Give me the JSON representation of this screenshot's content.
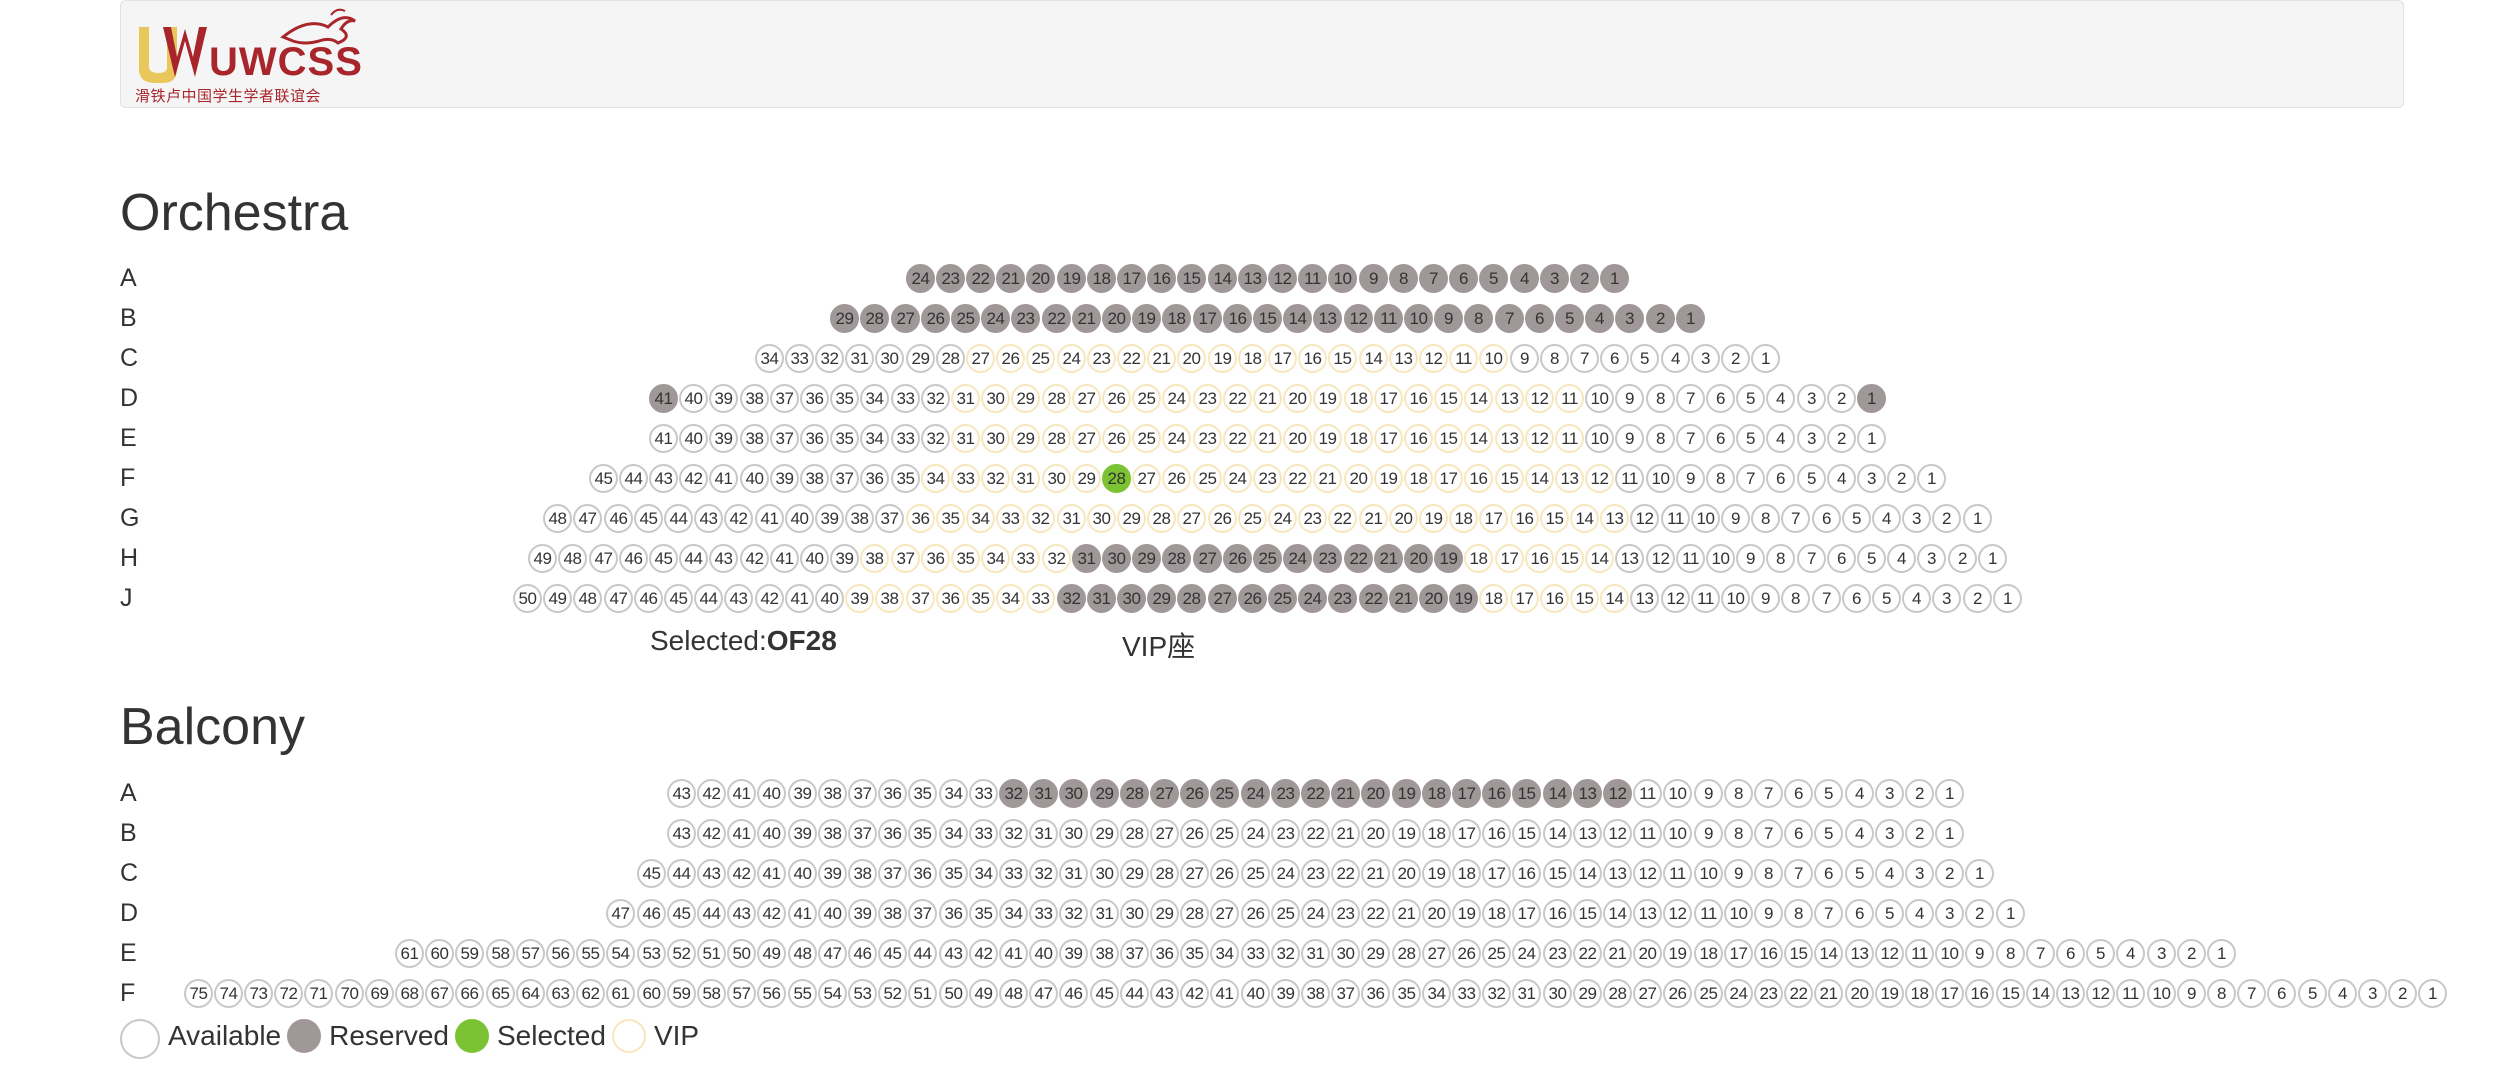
{
  "header": {
    "logo_text": "UWCSSA",
    "logo_subtitle": "滑铁卢中国学生学者联谊会"
  },
  "colors": {
    "available_border": "#c8c8c8",
    "reserved": "#a09898",
    "selected": "#7cc333",
    "vip_border": "#f6e7bc",
    "logo_red": "#a8262b",
    "logo_gold": "#e9c24a"
  },
  "orchestra": {
    "title": "Orchestra",
    "selected_label": "Selected:",
    "selected_value": "OF28",
    "vip_label": "VIP座",
    "rows": [
      {
        "label": "A",
        "max": 24,
        "reserved": [
          [
            1,
            24
          ]
        ],
        "vip": [],
        "selected": []
      },
      {
        "label": "B",
        "max": 29,
        "reserved": [
          [
            1,
            29
          ]
        ],
        "vip": [],
        "selected": []
      },
      {
        "label": "C",
        "max": 34,
        "reserved": [],
        "vip": [
          [
            10,
            27
          ]
        ],
        "selected": []
      },
      {
        "label": "D",
        "max": 41,
        "reserved": [
          [
            1,
            1
          ],
          [
            41,
            41
          ]
        ],
        "vip": [
          [
            11,
            31
          ]
        ],
        "selected": []
      },
      {
        "label": "E",
        "max": 41,
        "reserved": [],
        "vip": [
          [
            11,
            31
          ]
        ],
        "selected": []
      },
      {
        "label": "F",
        "max": 45,
        "reserved": [],
        "vip": [
          [
            12,
            34
          ]
        ],
        "selected": [
          28
        ]
      },
      {
        "label": "G",
        "max": 48,
        "reserved": [],
        "vip": [
          [
            13,
            36
          ]
        ],
        "selected": []
      },
      {
        "label": "H",
        "max": 49,
        "reserved": [
          [
            19,
            31
          ]
        ],
        "vip": [
          [
            14,
            38
          ]
        ],
        "selected": []
      },
      {
        "label": "J",
        "max": 50,
        "reserved": [
          [
            19,
            32
          ]
        ],
        "vip": [
          [
            14,
            39
          ]
        ],
        "selected": []
      }
    ]
  },
  "balcony": {
    "title": "Balcony",
    "rows": [
      {
        "label": "A",
        "max": 43,
        "reserved": [
          [
            12,
            32
          ]
        ],
        "vip": [],
        "selected": []
      },
      {
        "label": "B",
        "max": 43,
        "reserved": [],
        "vip": [],
        "selected": []
      },
      {
        "label": "C",
        "max": 45,
        "reserved": [],
        "vip": [],
        "selected": []
      },
      {
        "label": "D",
        "max": 47,
        "reserved": [],
        "vip": [],
        "selected": []
      },
      {
        "label": "E",
        "max": 61,
        "reserved": [],
        "vip": [],
        "selected": []
      },
      {
        "label": "F",
        "max": 75,
        "reserved": [],
        "vip": [],
        "selected": []
      }
    ]
  },
  "legend": {
    "available": "Available",
    "reserved": "Reserved",
    "selected": "Selected",
    "vip": "VIP"
  }
}
